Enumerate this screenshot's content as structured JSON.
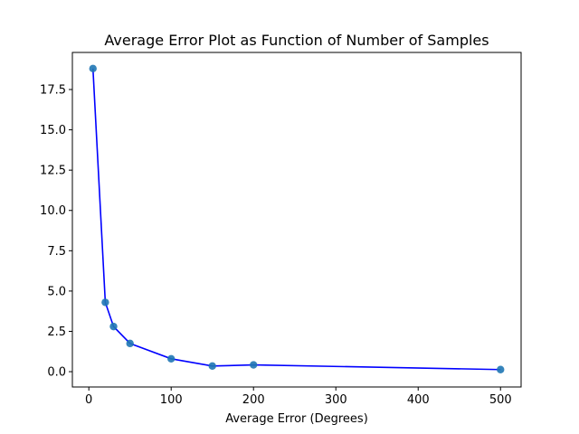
{
  "chart_data": {
    "type": "line",
    "title": "Average Error Plot as Function of Number of Samples",
    "xlabel": "Average Error (Degrees)",
    "ylabel": "",
    "xlim": [
      -20,
      525
    ],
    "ylim": [
      -0.95,
      19.8
    ],
    "xticks": [
      0,
      100,
      200,
      300,
      400,
      500
    ],
    "yticks": [
      0.0,
      2.5,
      5.0,
      7.5,
      10.0,
      12.5,
      15.0,
      17.5
    ],
    "xtick_labels": [
      "0",
      "100",
      "200",
      "300",
      "400",
      "500"
    ],
    "ytick_labels": [
      "0.0",
      "2.5",
      "5.0",
      "7.5",
      "10.0",
      "12.5",
      "15.0",
      "17.5"
    ],
    "grid": false,
    "legend": false,
    "series": [
      {
        "x": [
          5,
          20,
          30,
          50,
          100,
          150,
          200,
          500
        ],
        "y": [
          18.8,
          4.3,
          2.8,
          1.75,
          0.8,
          0.35,
          0.42,
          0.13
        ],
        "line_color": "#0000ff",
        "marker_color": "#1f77b4"
      }
    ]
  }
}
